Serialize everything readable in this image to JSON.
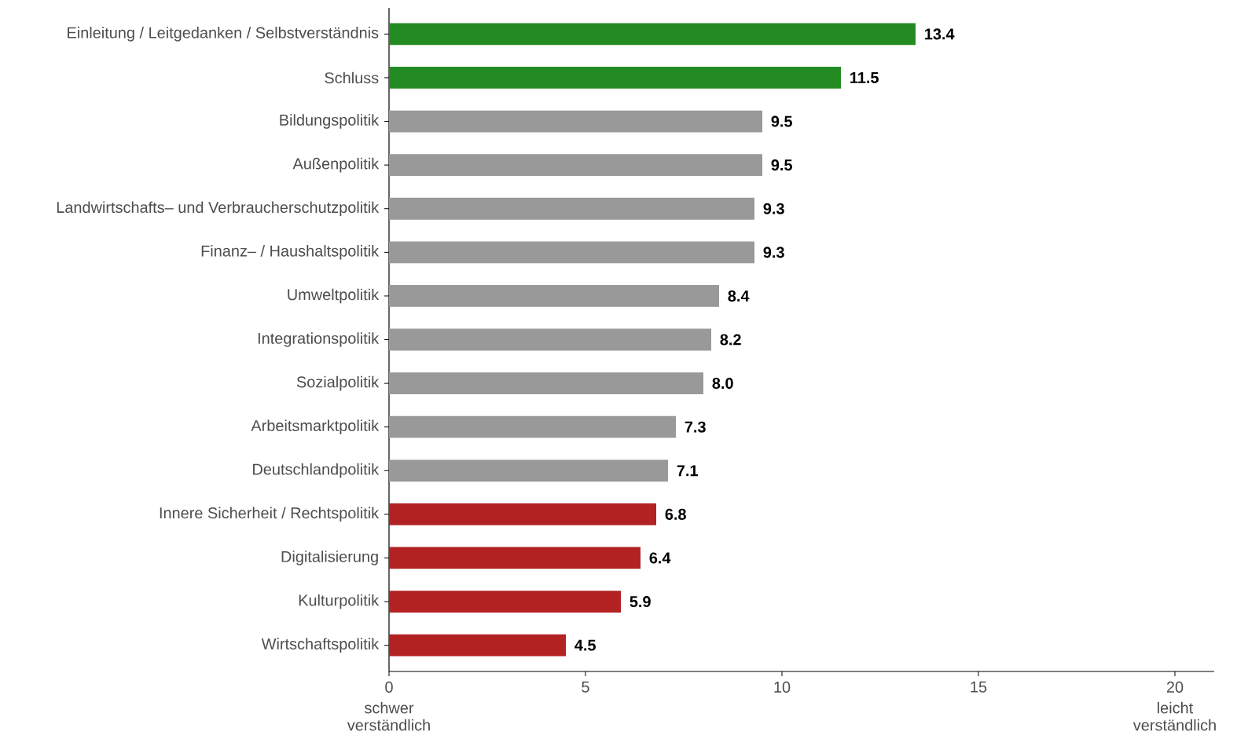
{
  "chart_data": {
    "type": "bar",
    "orientation": "horizontal",
    "categories": [
      "Einleitung / Leitgedanken / Selbstverständnis",
      "Schluss",
      "Bildungspolitik",
      "Außenpolitik",
      "Landwirtschafts– und Verbraucherschutzpolitik",
      "Finanz– / Haushaltspolitik",
      "Umweltpolitik",
      "Integrationspolitik",
      "Sozialpolitik",
      "Arbeitsmarktpolitik",
      "Deutschlandpolitik",
      "Innere Sicherheit / Rechtspolitik",
      "Digitalisierung",
      "Kulturpolitik",
      "Wirtschaftspolitik"
    ],
    "values": [
      13.4,
      11.5,
      9.5,
      9.5,
      9.3,
      9.3,
      8.4,
      8.2,
      8.0,
      7.3,
      7.1,
      6.8,
      6.4,
      5.9,
      4.5
    ],
    "value_labels": [
      "13.4",
      "11.5",
      "9.5",
      "9.5",
      "9.3",
      "9.3",
      "8.4",
      "8.2",
      "8.0",
      "7.3",
      "7.1",
      "6.8",
      "6.4",
      "5.9",
      "4.5"
    ],
    "colors": [
      "#228b22",
      "#228b22",
      "#999999",
      "#999999",
      "#999999",
      "#999999",
      "#999999",
      "#999999",
      "#999999",
      "#999999",
      "#999999",
      "#b22222",
      "#b22222",
      "#b22222",
      "#b22222"
    ],
    "xlim": [
      0,
      21
    ],
    "xticks": [
      0,
      5,
      10,
      15,
      20
    ],
    "annotations": [
      "schwer verständlich",
      "leicht verständlich"
    ],
    "grid": false
  }
}
